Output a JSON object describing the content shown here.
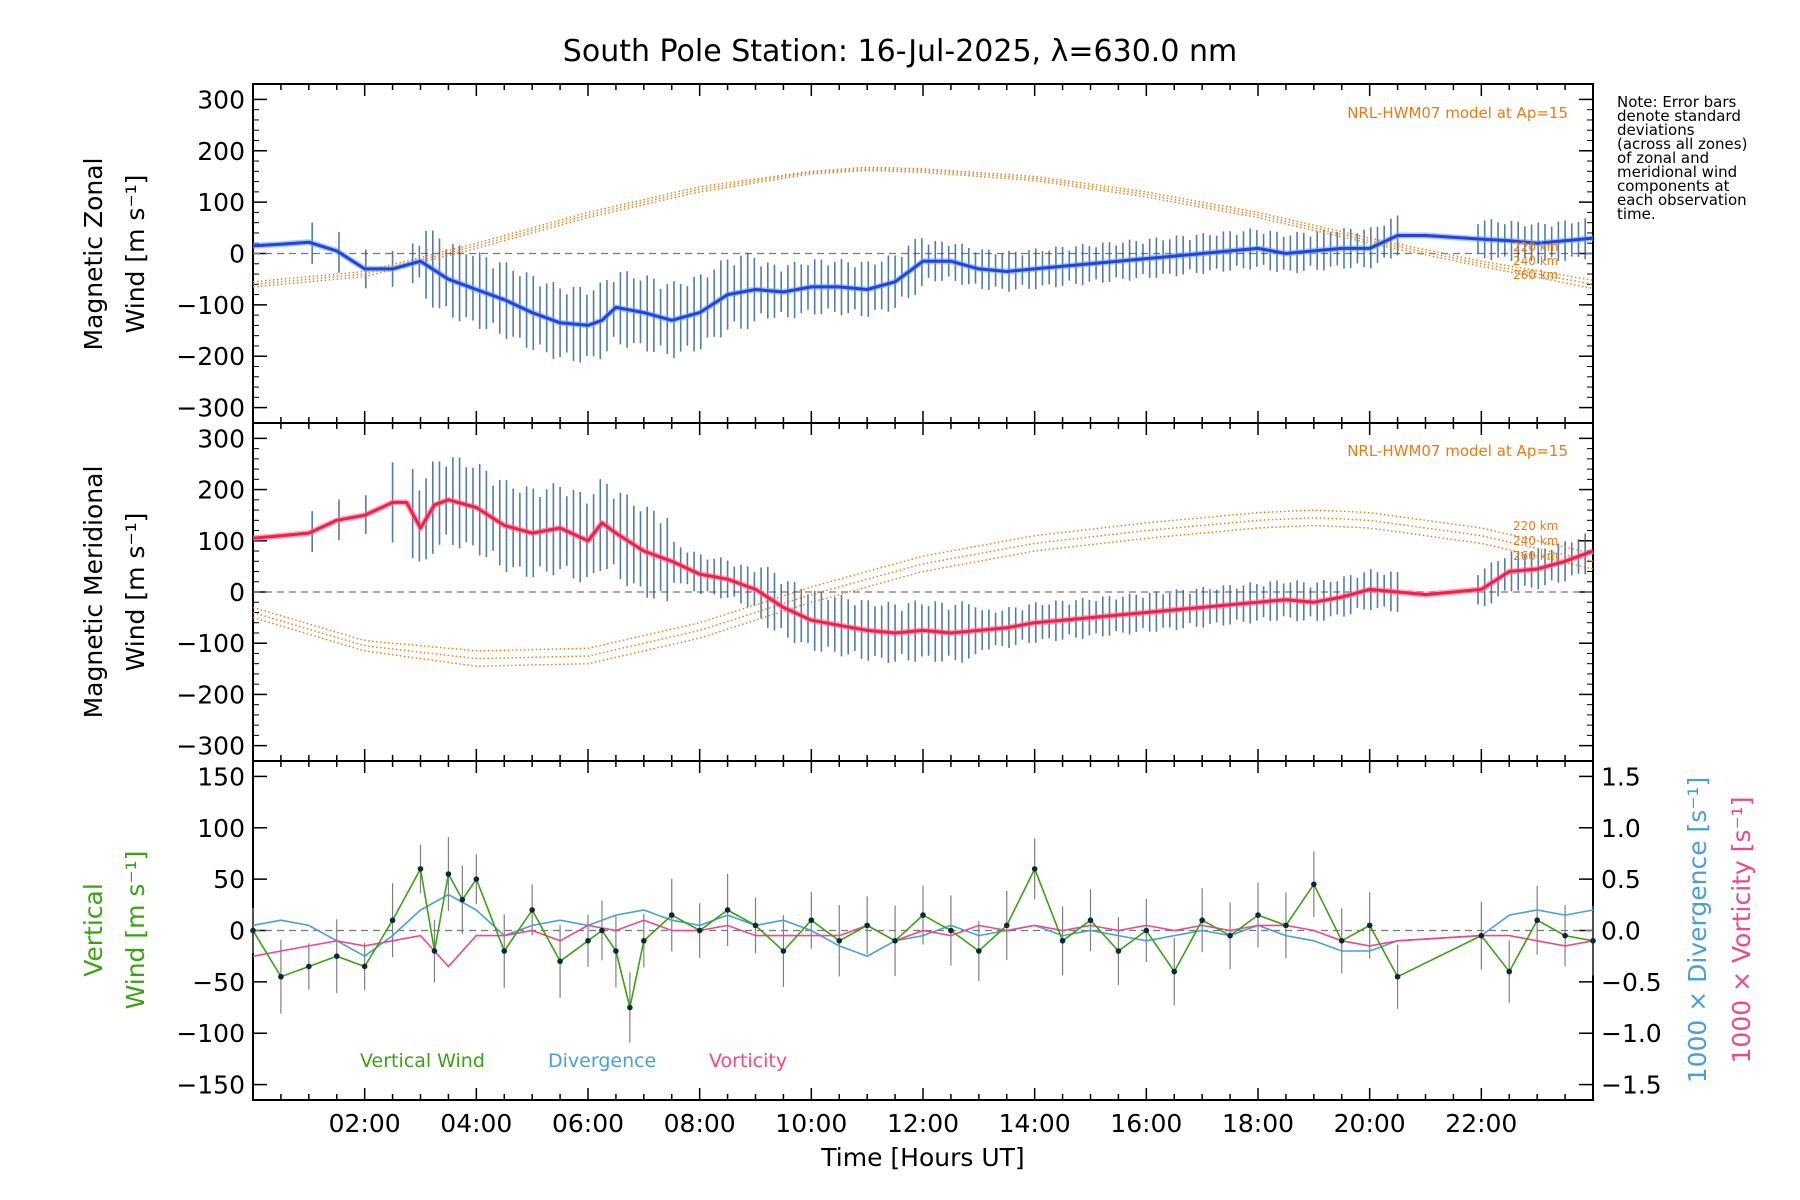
{
  "chart_data": {
    "type": "line",
    "title": "South Pole Station: 16-Jul-2025, λ=630.0 nm",
    "xlabel": "Time [Hours UT]",
    "x_ticks": [
      "02:00",
      "04:00",
      "06:00",
      "08:00",
      "10:00",
      "12:00",
      "14:00",
      "16:00",
      "18:00",
      "20:00",
      "22:00"
    ],
    "xlim": [
      0,
      24
    ],
    "note": [
      "Note: Error bars",
      "denote standard",
      "deviations",
      "(across all zones)",
      "of zonal and",
      "meridional wind",
      "components at",
      "each observation",
      "time."
    ],
    "panels": [
      {
        "id": "zonal",
        "ylabel": [
          "Magnetic Zonal",
          "Wind [m s⁻¹]"
        ],
        "ylim": [
          -330,
          330
        ],
        "yticks": [
          300,
          200,
          100,
          0,
          -100,
          -200,
          -300
        ],
        "model_label": "NRL-HWM07 model at Ap=15",
        "altitudes": [
          "220 km",
          "240 km",
          "260 km"
        ],
        "colors": {
          "mean": "#2a3de6",
          "mean_light": "#5bb0e0",
          "model": "#e87c14",
          "err": "#1e4f8a"
        },
        "series": [
          {
            "name": "Mean zonal wind",
            "x": [
              0,
              0.5,
              1,
              1.5,
              2,
              2.5,
              3,
              3.5,
              4,
              4.5,
              5,
              5.5,
              6,
              6.25,
              6.5,
              7,
              7.5,
              8,
              8.5,
              9,
              9.5,
              10,
              10.5,
              11,
              11.5,
              12,
              12.5,
              13,
              13.5,
              14,
              14.5,
              15,
              15.5,
              16,
              16.5,
              17,
              17.5,
              18,
              18.5,
              19,
              19.5,
              20,
              20.5,
              21,
              22,
              22.5,
              23,
              23.5,
              24
            ],
            "values": [
              15,
              18,
              22,
              5,
              -30,
              -30,
              -15,
              -50,
              -70,
              -90,
              -115,
              -135,
              -140,
              -130,
              -105,
              -115,
              -130,
              -115,
              -80,
              -70,
              -75,
              -65,
              -65,
              -70,
              -55,
              -15,
              -15,
              -30,
              -35,
              -30,
              -25,
              -20,
              -15,
              -10,
              -5,
              0,
              5,
              10,
              0,
              5,
              10,
              10,
              35,
              35,
              28,
              25,
              20,
              25,
              30
            ]
          },
          {
            "name": "Model 220 km",
            "x": [
              0,
              2,
              4,
              6,
              8,
              10,
              11,
              12,
              14,
              16,
              18,
              20,
              22,
              24
            ],
            "values": [
              -55,
              -35,
              20,
              80,
              130,
              160,
              168,
              165,
              150,
              120,
              80,
              30,
              -15,
              -52
            ]
          },
          {
            "name": "Model 240 km",
            "x": [
              0,
              2,
              4,
              6,
              8,
              10,
              11,
              12,
              14,
              16,
              18,
              20,
              22,
              24
            ],
            "values": [
              -60,
              -40,
              15,
              75,
              125,
              158,
              165,
              162,
              146,
              115,
              75,
              25,
              -20,
              -60
            ]
          },
          {
            "name": "Model 260 km",
            "x": [
              0,
              2,
              4,
              6,
              8,
              10,
              11,
              12,
              14,
              16,
              18,
              20,
              22,
              24
            ],
            "values": [
              -65,
              -45,
              10,
              70,
              120,
              155,
              162,
              158,
              142,
              110,
              70,
              20,
              -25,
              -68
            ]
          }
        ]
      },
      {
        "id": "meridional",
        "ylabel": [
          "Magnetic Meridional",
          "Wind [m s⁻¹]"
        ],
        "ylim": [
          -330,
          330
        ],
        "yticks": [
          300,
          200,
          100,
          0,
          -100,
          -200,
          -300
        ],
        "model_label": "NRL-HWM07 model at Ap=15",
        "altitudes": [
          "220 km",
          "240 km",
          "260 km"
        ],
        "colors": {
          "mean": "#f0204a",
          "mean_light": "#ff7090",
          "model": "#e87c14",
          "err": "#1e4f8a"
        },
        "series": [
          {
            "name": "Mean meridional wind",
            "x": [
              0,
              0.5,
              1,
              1.5,
              2,
              2.5,
              2.75,
              3,
              3.25,
              3.5,
              4,
              4.5,
              5,
              5.5,
              6,
              6.25,
              6.5,
              7,
              7.5,
              8,
              8.5,
              9,
              9.5,
              10,
              10.5,
              11,
              11.5,
              12,
              12.5,
              13,
              13.5,
              14,
              14.5,
              15,
              15.5,
              16,
              16.5,
              17,
              17.5,
              18,
              18.5,
              19,
              19.5,
              20,
              20.5,
              21,
              22,
              22.5,
              23,
              23.5,
              24
            ],
            "values": [
              105,
              110,
              115,
              140,
              150,
              175,
              175,
              125,
              170,
              180,
              165,
              130,
              115,
              125,
              100,
              135,
              115,
              80,
              60,
              35,
              25,
              5,
              -30,
              -55,
              -65,
              -75,
              -80,
              -75,
              -80,
              -75,
              -70,
              -60,
              -55,
              -50,
              -45,
              -40,
              -35,
              -30,
              -25,
              -20,
              -15,
              -20,
              -10,
              5,
              0,
              -5,
              5,
              40,
              45,
              60,
              80
            ]
          },
          {
            "name": "Model 220 km",
            "x": [
              0,
              2,
              4,
              6,
              8,
              10,
              12,
              14,
              16,
              18,
              19,
              20,
              22,
              24
            ],
            "values": [
              -30,
              -95,
              -115,
              -110,
              -60,
              10,
              70,
              110,
              135,
              155,
              160,
              155,
              125,
              75
            ]
          },
          {
            "name": "Model 240 km",
            "x": [
              0,
              2,
              4,
              6,
              8,
              10,
              12,
              14,
              16,
              18,
              19,
              20,
              22,
              24
            ],
            "values": [
              -40,
              -105,
              -130,
              -125,
              -75,
              -5,
              55,
              95,
              120,
              140,
              145,
              140,
              110,
              60
            ]
          },
          {
            "name": "Model 260 km",
            "x": [
              0,
              2,
              4,
              6,
              8,
              10,
              12,
              14,
              16,
              18,
              19,
              20,
              22,
              24
            ],
            "values": [
              -50,
              -115,
              -145,
              -140,
              -90,
              -20,
              40,
              80,
              105,
              125,
              130,
              125,
              95,
              45
            ]
          }
        ]
      },
      {
        "id": "vertical",
        "ylabel": [
          "Vertical",
          "Wind [m s⁻¹]"
        ],
        "ylim": [
          -165,
          165
        ],
        "yticks": [
          150,
          100,
          50,
          0,
          -50,
          -100,
          -150
        ],
        "right_axis": {
          "ylabel_divergence": "1000 × Divergence [s⁻¹]",
          "ylabel_vorticity": "1000 × Vorticity [s⁻¹]",
          "ylim": [
            -1.65,
            1.65
          ],
          "yticks": [
            "1.5",
            "1.0",
            "0.5",
            "0.0",
            "-0.5",
            "-1.0",
            "-1.5"
          ]
        },
        "legend": [
          "Vertical Wind",
          "Divergence",
          "Vorticity"
        ],
        "colors": {
          "vertical": "#3ca214",
          "divergence": "#4aa0d6",
          "vorticity": "#f0488a",
          "err": "#808080",
          "point": "#0a2a3a"
        },
        "series": [
          {
            "name": "Vertical Wind",
            "x": [
              0,
              0.5,
              1,
              1.5,
              2,
              2.5,
              3,
              3.25,
              3.5,
              3.75,
              4,
              4.5,
              5,
              5.5,
              6,
              6.25,
              6.5,
              6.75,
              7,
              7.5,
              8,
              8.5,
              9,
              9.5,
              10,
              10.5,
              11,
              11.5,
              12,
              12.5,
              13,
              13.5,
              14,
              14.5,
              15,
              15.5,
              16,
              16.5,
              17,
              17.5,
              18,
              18.5,
              19,
              19.5,
              20,
              20.5,
              22,
              22.5,
              23,
              23.5,
              24
            ],
            "values": [
              0,
              -45,
              -35,
              -25,
              -35,
              10,
              60,
              -20,
              55,
              30,
              50,
              -20,
              20,
              -30,
              -10,
              0,
              -20,
              -75,
              -10,
              15,
              0,
              20,
              5,
              -20,
              10,
              -10,
              5,
              -10,
              15,
              0,
              -20,
              5,
              60,
              -10,
              10,
              -20,
              0,
              -40,
              10,
              -5,
              15,
              5,
              45,
              -10,
              5,
              -45,
              -5,
              -40,
              10,
              -5,
              -10
            ]
          },
          {
            "name": "Divergence",
            "x": [
              0,
              0.5,
              1,
              1.5,
              2,
              2.5,
              3,
              3.5,
              4,
              4.5,
              5,
              5.5,
              6,
              6.5,
              7,
              7.5,
              8,
              8.5,
              9,
              9.5,
              10,
              10.5,
              11,
              11.5,
              12,
              12.5,
              13,
              13.5,
              14,
              14.5,
              15,
              15.5,
              16,
              16.5,
              17,
              17.5,
              18,
              18.5,
              19,
              19.5,
              20,
              20.5,
              22,
              22.5,
              23,
              23.5,
              24
            ],
            "values": [
              0.05,
              0.1,
              0.05,
              -0.1,
              -0.25,
              -0.05,
              0.2,
              0.35,
              0.2,
              -0.05,
              0.05,
              0.1,
              0.05,
              0.15,
              0.2,
              0.1,
              0.05,
              0.15,
              0.05,
              0.1,
              0.0,
              -0.15,
              -0.25,
              -0.1,
              -0.05,
              0.05,
              -0.05,
              0.0,
              0.05,
              -0.05,
              0.0,
              -0.05,
              -0.1,
              -0.05,
              0.0,
              -0.05,
              0.05,
              -0.05,
              -0.1,
              -0.2,
              -0.2,
              -0.1,
              -0.05,
              0.15,
              0.2,
              0.15,
              0.2
            ]
          },
          {
            "name": "Vorticity",
            "x": [
              0,
              0.5,
              1,
              1.5,
              2,
              2.5,
              3,
              3.5,
              4,
              4.5,
              5,
              5.5,
              6,
              6.5,
              7,
              7.5,
              8,
              8.5,
              9,
              9.5,
              10,
              10.5,
              11,
              11.5,
              12,
              12.5,
              13,
              13.5,
              14,
              14.5,
              15,
              15.5,
              16,
              16.5,
              17,
              17.5,
              18,
              18.5,
              19,
              19.5,
              20,
              20.5,
              22,
              22.5,
              23,
              23.5,
              24
            ],
            "values": [
              -0.25,
              -0.2,
              -0.15,
              -0.1,
              -0.15,
              -0.1,
              -0.05,
              -0.35,
              -0.05,
              -0.05,
              0.0,
              -0.1,
              0.05,
              0.0,
              0.1,
              0.0,
              0.0,
              0.05,
              -0.05,
              -0.05,
              -0.05,
              -0.05,
              0.05,
              -0.1,
              0.0,
              -0.05,
              0.05,
              0.0,
              0.05,
              0.0,
              0.05,
              0.0,
              0.05,
              0.0,
              0.05,
              0.0,
              0.05,
              0.05,
              0.0,
              -0.1,
              -0.15,
              -0.1,
              -0.05,
              -0.05,
              -0.1,
              -0.15,
              -0.1
            ]
          }
        ]
      }
    ]
  }
}
